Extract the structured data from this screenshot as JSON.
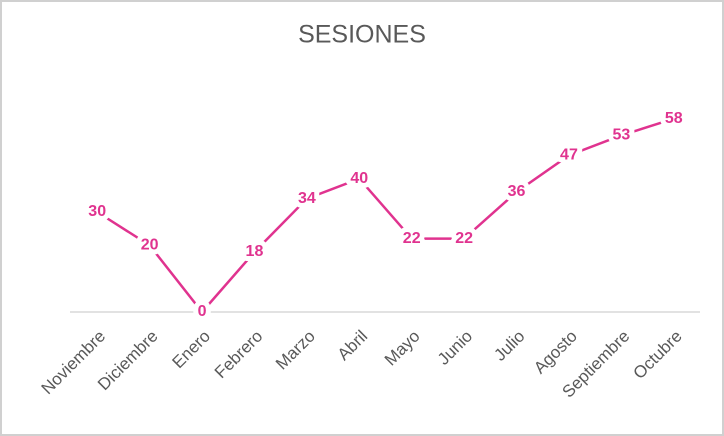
{
  "chart_data": {
    "type": "line",
    "title": "SESIONES",
    "categories": [
      "Noviembre",
      "Diciembre",
      "Enero",
      "Febrero",
      "Marzo",
      "Abril",
      "Mayo",
      "Junio",
      "Julio",
      "Agosto",
      "Septiembre",
      "Octubre"
    ],
    "values": [
      30,
      20,
      0,
      18,
      34,
      40,
      22,
      22,
      36,
      47,
      53,
      58
    ],
    "color": "#e0338f",
    "ylim": [
      0,
      60
    ]
  }
}
